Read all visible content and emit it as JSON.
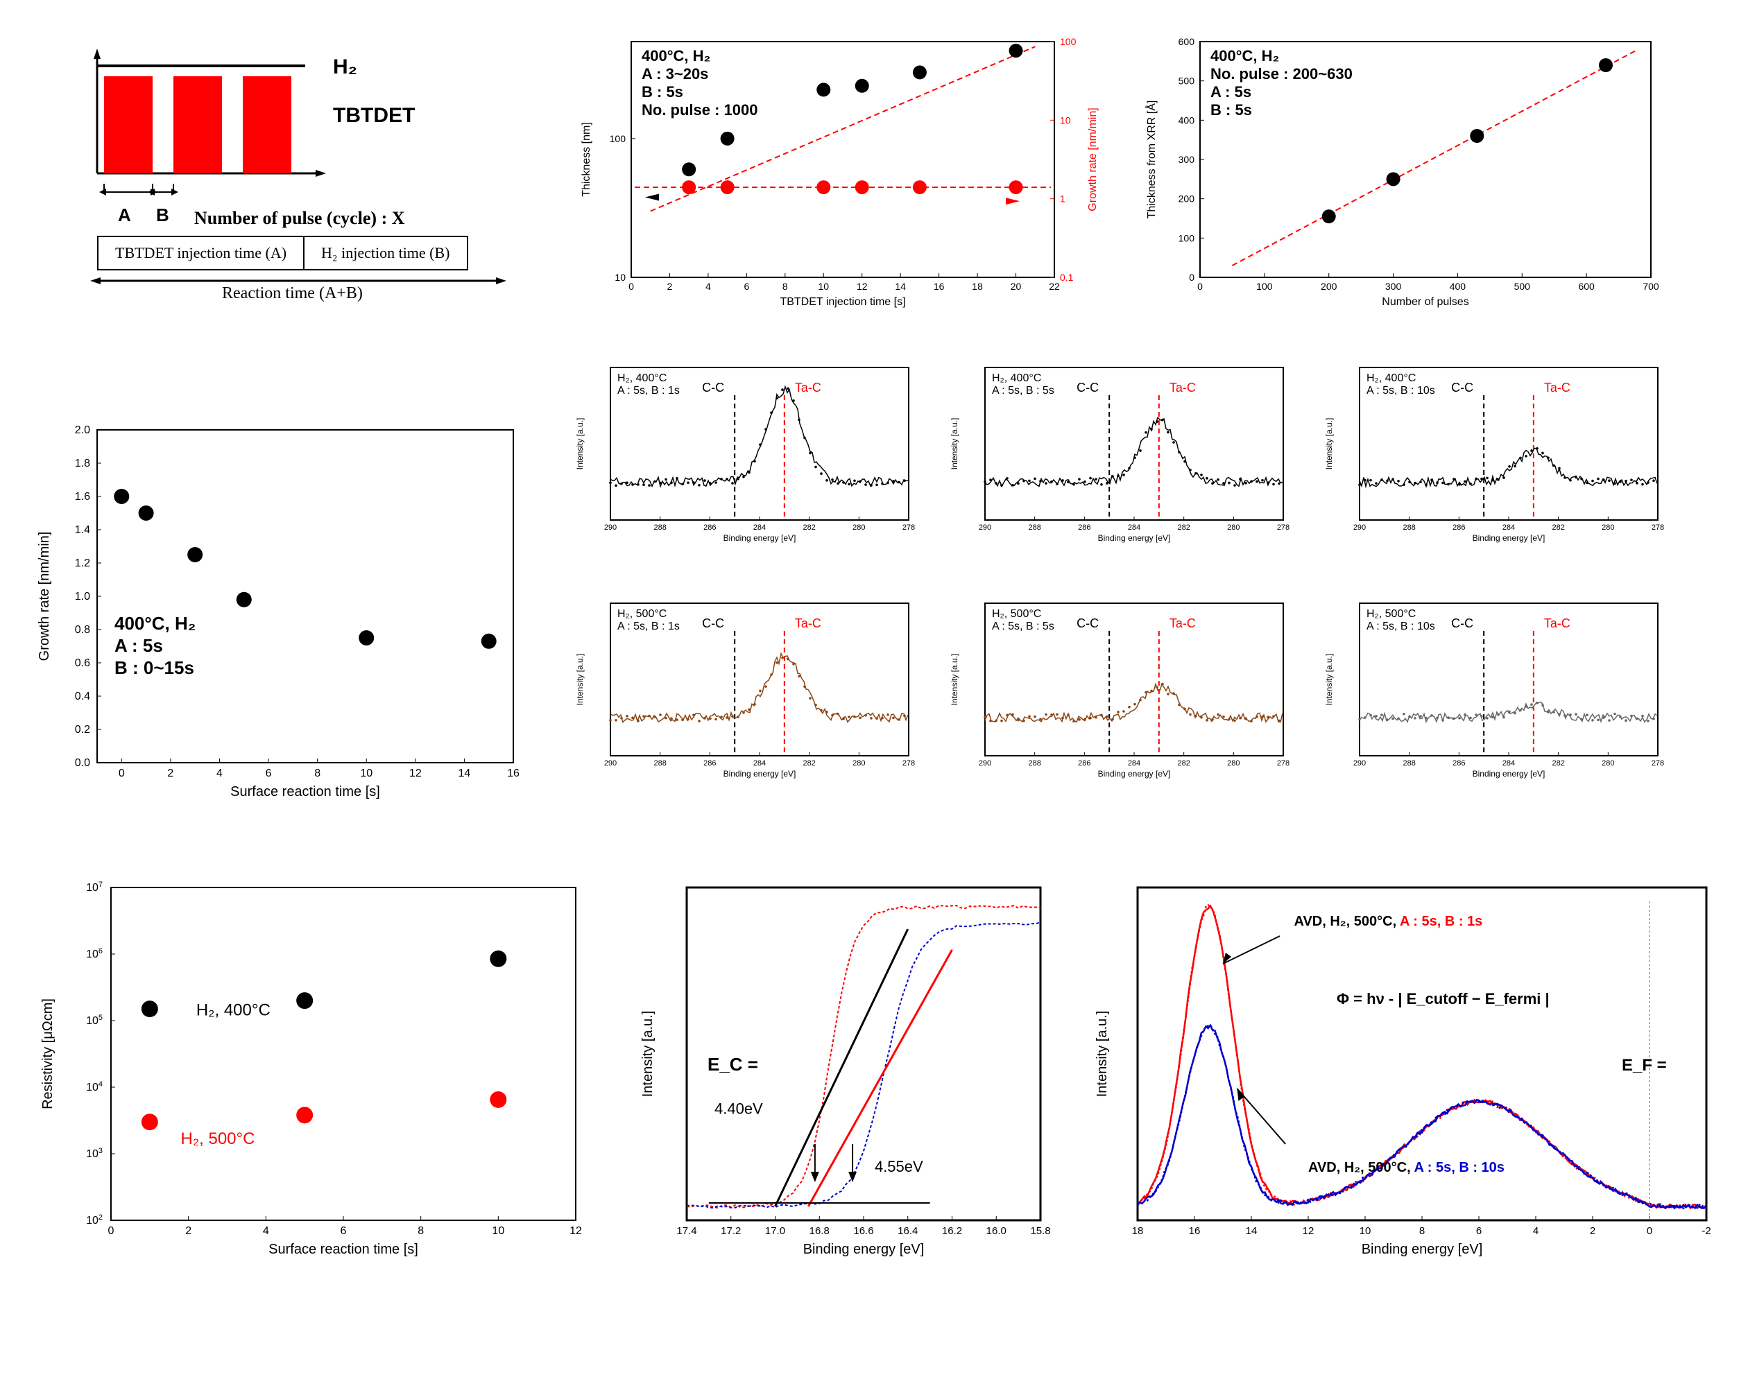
{
  "row1": {
    "schematic": {
      "h2_label": "H₂",
      "tbtdet_label": "TBTDET",
      "a_label": "A",
      "b_label": "B",
      "caption": "Number of pulse (cycle) : X",
      "box1": "TBTDET injection time (A)",
      "box2": "H₂ injection time (B)",
      "reaction": "Reaction time (A+B)",
      "bar_color": "#ff0000"
    },
    "chart2": {
      "anno": [
        "400°C, H₂",
        "A : 3~20s",
        "B : 5s",
        "No. pulse : 1000"
      ],
      "xlabel": "TBTDET injection time [s]",
      "ylabel": "Thickness [nm]",
      "ylabel2": "Growth rate [nm/min]",
      "xlim": [
        0,
        22
      ],
      "ylim": [
        10,
        500
      ],
      "ylim2": [
        0.1,
        100
      ],
      "xticks": [
        0,
        2,
        4,
        6,
        8,
        10,
        12,
        14,
        16,
        18,
        20,
        22
      ],
      "yticks": [
        10,
        100
      ],
      "thickness_x": [
        3,
        5,
        10,
        12,
        15,
        20
      ],
      "thickness_y": [
        60,
        100,
        225,
        240,
        300,
        430
      ],
      "rate_x": [
        3,
        5,
        10,
        12,
        15,
        20
      ],
      "rate_y": [
        1.4,
        1.4,
        1.4,
        1.4,
        1.4,
        1.4
      ],
      "black": "#000000",
      "red": "#ff0000",
      "marker_size": 10
    },
    "chart3": {
      "anno": [
        "400°C, H₂",
        "No. pulse : 200~630",
        "A : 5s",
        "B : 5s"
      ],
      "xlabel": "Number of pulses",
      "ylabel": "Thickness from XRR [Å]",
      "xlim": [
        0,
        700
      ],
      "ylim": [
        0,
        600
      ],
      "xticks": [
        0,
        100,
        200,
        300,
        400,
        500,
        600,
        700
      ],
      "yticks": [
        0,
        100,
        200,
        300,
        400,
        500,
        600
      ],
      "data_x": [
        200,
        300,
        430,
        630
      ],
      "data_y": [
        155,
        250,
        360,
        540
      ],
      "black": "#000000",
      "red": "#ff0000",
      "marker_size": 10
    }
  },
  "row2": {
    "left": {
      "anno": [
        "400°C, H₂",
        "A : 5s",
        "B : 0~15s"
      ],
      "xlabel": "Surface reaction time [s]",
      "ylabel": "Growth rate [nm/min]",
      "xlim": [
        -1,
        16
      ],
      "ylim": [
        0,
        2.0
      ],
      "xticks": [
        0,
        2,
        4,
        6,
        8,
        10,
        12,
        14,
        16
      ],
      "yticks": [
        0.0,
        0.2,
        0.4,
        0.6,
        0.8,
        1.0,
        1.2,
        1.4,
        1.6,
        1.8,
        2.0
      ],
      "data_x": [
        0,
        1,
        3,
        5,
        10,
        15
      ],
      "data_y": [
        1.6,
        1.5,
        1.25,
        0.98,
        0.75,
        0.73
      ],
      "black": "#000000",
      "marker_size": 11
    },
    "xps": {
      "conditions": [
        {
          "temp": "400°C",
          "b": "1s",
          "row": 0,
          "col": 0,
          "peak": "high"
        },
        {
          "temp": "400°C",
          "b": "5s",
          "row": 0,
          "col": 1,
          "peak": "med"
        },
        {
          "temp": "400°C",
          "b": "10s",
          "row": 0,
          "col": 2,
          "peak": "low"
        },
        {
          "temp": "500°C",
          "b": "1s",
          "row": 1,
          "col": 0,
          "peak": "med",
          "color": "#8b4513"
        },
        {
          "temp": "500°C",
          "b": "5s",
          "row": 1,
          "col": 1,
          "peak": "low",
          "color": "#8b4513"
        },
        {
          "temp": "500°C",
          "b": "10s",
          "row": 1,
          "col": 2,
          "peak": "flat",
          "color": "#666"
        }
      ],
      "cc_label": "C-C",
      "tac_label": "Ta-C",
      "xlabel": "Binding energy [eV]",
      "ylabel": "Intensity [a.u.]",
      "xlim": [
        290,
        278
      ],
      "xticks": [
        290,
        288,
        286,
        284,
        282,
        280,
        278
      ],
      "cc_pos": 285,
      "tac_pos": 283
    }
  },
  "row3": {
    "resist": {
      "anno400": "H₂, 400°C",
      "anno500": "H₂, 500°C",
      "xlabel": "Surface reaction time [s]",
      "ylabel": "Resistivity [μΩcm]",
      "xlim": [
        0,
        12
      ],
      "ylim_exp": [
        2,
        7
      ],
      "xticks": [
        0,
        2,
        4,
        6,
        8,
        10,
        12
      ],
      "yticks_exp": [
        2,
        3,
        4,
        5,
        6,
        7
      ],
      "black_x": [
        1,
        5,
        10
      ],
      "black_y": [
        150000,
        200000,
        850000
      ],
      "red_x": [
        1,
        5,
        10
      ],
      "red_y": [
        3000,
        3800,
        6500
      ],
      "black": "#000000",
      "red": "#ff0000",
      "marker_size": 12
    },
    "ups_left": {
      "ec_label": "E_C =",
      "ec_val1": "4.40eV",
      "ec_val2": "4.55eV",
      "xlabel": "Binding energy [eV]",
      "ylabel": "Intensity [a.u.]",
      "xlim": [
        17.4,
        15.8
      ],
      "xticks": [
        17.4,
        17.2,
        17.0,
        16.8,
        16.6,
        16.4,
        16.2,
        16.0,
        15.8
      ],
      "red": "#ff0000",
      "blue": "#0000cc",
      "black": "#000000"
    },
    "ups_right": {
      "label1": "AVD, H₂, 500°C, A : 5s, B : 1s",
      "label2": "AVD, H₂, 500°C, A : 5s, B : 10s",
      "formula": "Φ = hν - | E_cutoff − E_fermi |",
      "ef": "E_F =",
      "xlabel": "Binding energy [eV]",
      "ylabel": "Intensity [a.u.]",
      "xlim": [
        18,
        -2
      ],
      "xticks": [
        18,
        16,
        14,
        12,
        10,
        8,
        6,
        4,
        2,
        0,
        -2
      ],
      "red": "#ff0000",
      "blue": "#0000cc"
    }
  }
}
